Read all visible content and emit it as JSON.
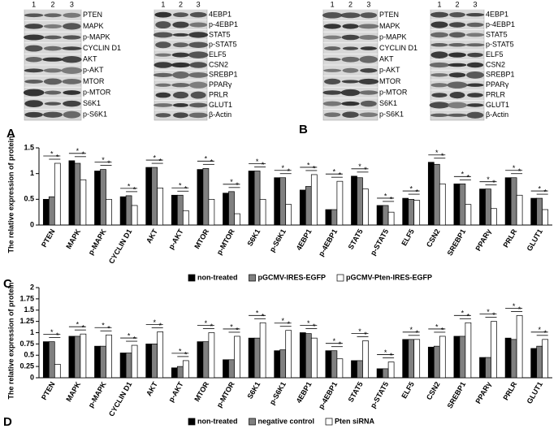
{
  "blots": [
    {
      "label": "A",
      "lanes": [
        "1",
        "2",
        "3"
      ],
      "left": [
        "PTEN",
        "MAPK",
        "p-MAPK",
        "CYCLIN D1",
        "AKT",
        "p-AKT",
        "MTOR",
        "p-MTOR",
        "S6K1",
        "p-S6K1"
      ],
      "right": [
        "4EBP1",
        "p-4EBP1",
        "STAT5",
        "p-STAT5",
        "ELF5",
        "CSN2",
        "SREBP1",
        "PPARγ",
        "PRLR",
        "GLUT1",
        "β-Actin"
      ]
    },
    {
      "label": "B",
      "lanes": [
        "1",
        "2",
        "3"
      ],
      "left": [
        "PTEN",
        "MAPK",
        "p-MAPK",
        "CYCLIN D1",
        "AKT",
        "p-AKT",
        "MTOR",
        "p-MTOR",
        "S6K1",
        "p-S6K1"
      ],
      "right": [
        "4EBP1",
        "p-4EBP1",
        "STAT5",
        "p-STAT5",
        "ELF5",
        "CSN2",
        "SREBP1",
        "PPARγ",
        "PRLR",
        "GLUT1",
        "β-Actin"
      ]
    }
  ],
  "chart_data": [
    {
      "type": "bar",
      "label": "C",
      "ylabel": "The relative expression of protein",
      "significance_mark": "*",
      "categories": [
        "PTEN",
        "MAPK",
        "p-MAPK",
        "CYCLIN D1",
        "AKT",
        "p-AKT",
        "MTOR",
        "p-MTOR",
        "S6K1",
        "p-S6K1",
        "4EBP1",
        "p-4EBP1",
        "STAT5",
        "p-STAT5",
        "ELF5",
        "CSN2",
        "SREBP1",
        "PPARγ",
        "PRLR",
        "GLUT1"
      ],
      "series": [
        {
          "name": "non-treated",
          "color": "#000000",
          "values": [
            0.5,
            1.25,
            1.05,
            0.55,
            1.12,
            0.58,
            1.08,
            0.62,
            1.05,
            0.92,
            0.68,
            0.3,
            0.95,
            0.38,
            0.52,
            1.22,
            0.8,
            0.7,
            0.92,
            0.52
          ]
        },
        {
          "name": "pGCMV-IRES-EGFP",
          "color": "#808080",
          "values": [
            0.55,
            1.2,
            1.08,
            0.57,
            1.12,
            0.58,
            1.1,
            0.65,
            1.05,
            0.92,
            0.75,
            0.3,
            0.92,
            0.38,
            0.5,
            1.18,
            0.8,
            0.7,
            0.92,
            0.52
          ]
        },
        {
          "name": "pGCMV-Pten-IRES-EGFP",
          "color": "#ffffff",
          "values": [
            1.2,
            0.88,
            0.5,
            0.38,
            0.72,
            0.28,
            0.5,
            0.22,
            0.5,
            0.4,
            0.98,
            0.85,
            0.7,
            0.25,
            0.48,
            0.8,
            0.4,
            0.32,
            0.58,
            0.3
          ]
        }
      ],
      "ylim": [
        0,
        1.5
      ],
      "yticks": [
        0,
        0.5,
        1,
        1.5
      ]
    },
    {
      "type": "bar",
      "label": "D",
      "ylabel": "The relative expression of protein",
      "significance_mark": "*",
      "categories": [
        "PTEN",
        "MAPK",
        "p-MAPK",
        "CYCLIN D1",
        "AKT",
        "p-AKT",
        "MTOR",
        "p-MTOR",
        "S6K1",
        "p-S6K1",
        "4EBP1",
        "p-4EBP1",
        "STAT5",
        "p-STAT5",
        "ELF5",
        "CSN2",
        "SREBP1",
        "PPARγ",
        "PRLR",
        "GLUT1"
      ],
      "series": [
        {
          "name": "non-treated",
          "color": "#000000",
          "values": [
            0.8,
            0.92,
            0.7,
            0.55,
            0.75,
            0.22,
            0.8,
            0.4,
            0.88,
            0.6,
            1.0,
            0.6,
            0.38,
            0.2,
            0.85,
            0.68,
            0.92,
            0.45,
            0.88,
            0.65
          ]
        },
        {
          "name": "negative control",
          "color": "#808080",
          "values": [
            0.8,
            0.92,
            0.7,
            0.55,
            0.75,
            0.25,
            0.8,
            0.4,
            0.88,
            0.62,
            0.98,
            0.6,
            0.38,
            0.2,
            0.85,
            0.7,
            0.92,
            0.45,
            0.85,
            0.7
          ]
        },
        {
          "name": "Pten siRNA",
          "color": "#ffffff",
          "values": [
            0.3,
            0.97,
            0.95,
            0.72,
            1.02,
            0.38,
            1.0,
            0.92,
            1.22,
            1.05,
            0.88,
            0.42,
            0.82,
            0.35,
            0.85,
            0.92,
            1.22,
            1.25,
            1.38,
            0.85
          ]
        }
      ],
      "ylim": [
        0,
        2
      ],
      "yticks": [
        0,
        0.25,
        0.5,
        0.75,
        1,
        1.25,
        1.5,
        1.75,
        2
      ]
    }
  ]
}
